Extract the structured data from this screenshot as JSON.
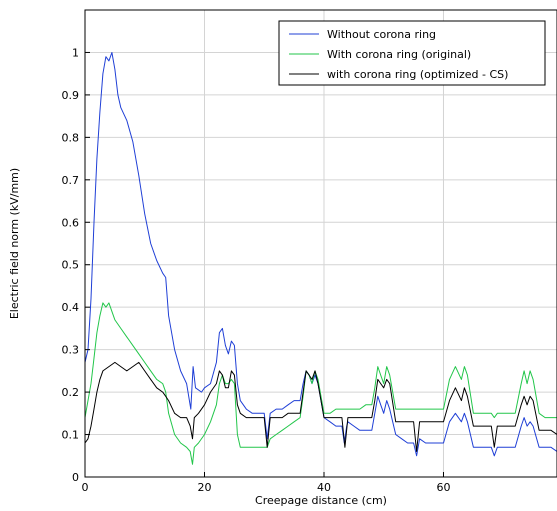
{
  "chart_data": {
    "type": "line",
    "title": "",
    "xlabel": "Creepage distance (cm)",
    "ylabel": "Electric field norm (kV/mm)",
    "xlim": [
      0,
      79
    ],
    "ylim": [
      0,
      1.1
    ],
    "xticks": [
      0,
      20,
      40,
      60
    ],
    "yticks": [
      0,
      0.1,
      0.2,
      0.3,
      0.4,
      0.5,
      0.6,
      0.7,
      0.8,
      0.9,
      1
    ],
    "grid": true,
    "legend_position": "top-right",
    "series": [
      {
        "name": "Without corona ring",
        "color": "#1f3fd6",
        "points": [
          [
            0,
            0.27
          ],
          [
            0.5,
            0.3
          ],
          [
            1,
            0.42
          ],
          [
            1.5,
            0.6
          ],
          [
            2,
            0.75
          ],
          [
            2.5,
            0.86
          ],
          [
            3,
            0.95
          ],
          [
            3.5,
            0.99
          ],
          [
            4,
            0.98
          ],
          [
            4.5,
            1.0
          ],
          [
            5,
            0.96
          ],
          [
            5.5,
            0.9
          ],
          [
            6,
            0.87
          ],
          [
            7,
            0.84
          ],
          [
            8,
            0.79
          ],
          [
            9,
            0.71
          ],
          [
            10,
            0.62
          ],
          [
            11,
            0.55
          ],
          [
            12,
            0.51
          ],
          [
            13,
            0.48
          ],
          [
            13.5,
            0.47
          ],
          [
            14,
            0.38
          ],
          [
            15,
            0.3
          ],
          [
            16,
            0.25
          ],
          [
            17,
            0.22
          ],
          [
            17.7,
            0.16
          ],
          [
            18.1,
            0.26
          ],
          [
            18.5,
            0.21
          ],
          [
            19.5,
            0.2
          ],
          [
            20,
            0.21
          ],
          [
            21,
            0.22
          ],
          [
            22,
            0.27
          ],
          [
            22.5,
            0.34
          ],
          [
            23,
            0.35
          ],
          [
            23.5,
            0.31
          ],
          [
            24,
            0.29
          ],
          [
            24.5,
            0.32
          ],
          [
            25,
            0.31
          ],
          [
            25.5,
            0.22
          ],
          [
            26,
            0.18
          ],
          [
            27,
            0.16
          ],
          [
            28,
            0.15
          ],
          [
            29,
            0.15
          ],
          [
            30,
            0.15
          ],
          [
            30.5,
            0.09
          ],
          [
            31,
            0.15
          ],
          [
            32,
            0.16
          ],
          [
            33,
            0.16
          ],
          [
            34,
            0.17
          ],
          [
            35,
            0.18
          ],
          [
            36,
            0.18
          ],
          [
            36.5,
            0.22
          ],
          [
            37,
            0.25
          ],
          [
            37.5,
            0.24
          ],
          [
            38,
            0.22
          ],
          [
            38.5,
            0.24
          ],
          [
            39,
            0.22
          ],
          [
            40,
            0.14
          ],
          [
            41,
            0.13
          ],
          [
            42,
            0.12
          ],
          [
            43,
            0.12
          ],
          [
            43.4,
            0.08
          ],
          [
            43.8,
            0.12
          ],
          [
            44,
            0.13
          ],
          [
            45,
            0.12
          ],
          [
            46,
            0.11
          ],
          [
            47,
            0.11
          ],
          [
            48,
            0.11
          ],
          [
            48.5,
            0.15
          ],
          [
            49,
            0.19
          ],
          [
            49.5,
            0.17
          ],
          [
            50,
            0.15
          ],
          [
            50.5,
            0.18
          ],
          [
            51,
            0.16
          ],
          [
            52,
            0.1
          ],
          [
            53,
            0.09
          ],
          [
            54,
            0.08
          ],
          [
            55,
            0.08
          ],
          [
            55.5,
            0.05
          ],
          [
            56,
            0.09
          ],
          [
            57,
            0.08
          ],
          [
            58,
            0.08
          ],
          [
            59,
            0.08
          ],
          [
            60,
            0.08
          ],
          [
            61,
            0.13
          ],
          [
            62,
            0.15
          ],
          [
            63,
            0.13
          ],
          [
            63.5,
            0.15
          ],
          [
            64,
            0.13
          ],
          [
            65,
            0.07
          ],
          [
            66,
            0.07
          ],
          [
            67,
            0.07
          ],
          [
            68,
            0.07
          ],
          [
            68.5,
            0.05
          ],
          [
            69,
            0.07
          ],
          [
            70,
            0.07
          ],
          [
            71,
            0.07
          ],
          [
            72,
            0.07
          ],
          [
            73,
            0.12
          ],
          [
            73.5,
            0.14
          ],
          [
            74,
            0.12
          ],
          [
            74.5,
            0.13
          ],
          [
            75,
            0.12
          ],
          [
            76,
            0.07
          ],
          [
            77,
            0.07
          ],
          [
            78,
            0.07
          ],
          [
            79,
            0.06
          ]
        ]
      },
      {
        "name": "With corona ring (original)",
        "color": "#22c64a",
        "points": [
          [
            0,
            0.14
          ],
          [
            0.5,
            0.18
          ],
          [
            1,
            0.22
          ],
          [
            1.5,
            0.28
          ],
          [
            2,
            0.34
          ],
          [
            2.5,
            0.38
          ],
          [
            3,
            0.41
          ],
          [
            3.5,
            0.4
          ],
          [
            4,
            0.41
          ],
          [
            4.5,
            0.39
          ],
          [
            5,
            0.37
          ],
          [
            6,
            0.35
          ],
          [
            7,
            0.33
          ],
          [
            8,
            0.31
          ],
          [
            9,
            0.29
          ],
          [
            10,
            0.27
          ],
          [
            11,
            0.25
          ],
          [
            12,
            0.23
          ],
          [
            13,
            0.22
          ],
          [
            13.5,
            0.2
          ],
          [
            14,
            0.15
          ],
          [
            15,
            0.1
          ],
          [
            16,
            0.08
          ],
          [
            17,
            0.07
          ],
          [
            17.6,
            0.06
          ],
          [
            18,
            0.03
          ],
          [
            18.3,
            0.07
          ],
          [
            19,
            0.08
          ],
          [
            20,
            0.1
          ],
          [
            21,
            0.13
          ],
          [
            22,
            0.17
          ],
          [
            22.5,
            0.22
          ],
          [
            23,
            0.24
          ],
          [
            23.5,
            0.22
          ],
          [
            24,
            0.22
          ],
          [
            24.5,
            0.23
          ],
          [
            25,
            0.22
          ],
          [
            25.5,
            0.1
          ],
          [
            26,
            0.07
          ],
          [
            27,
            0.07
          ],
          [
            28,
            0.07
          ],
          [
            29,
            0.07
          ],
          [
            30,
            0.07
          ],
          [
            30.5,
            0.07
          ],
          [
            31,
            0.09
          ],
          [
            32,
            0.1
          ],
          [
            33,
            0.11
          ],
          [
            34,
            0.12
          ],
          [
            35,
            0.13
          ],
          [
            36,
            0.14
          ],
          [
            36.5,
            0.19
          ],
          [
            37,
            0.25
          ],
          [
            37.5,
            0.24
          ],
          [
            38,
            0.22
          ],
          [
            38.5,
            0.25
          ],
          [
            39,
            0.23
          ],
          [
            40,
            0.15
          ],
          [
            41,
            0.15
          ],
          [
            42,
            0.16
          ],
          [
            43,
            0.16
          ],
          [
            43.5,
            0.16
          ],
          [
            44,
            0.16
          ],
          [
            45,
            0.16
          ],
          [
            46,
            0.16
          ],
          [
            47,
            0.17
          ],
          [
            48,
            0.17
          ],
          [
            48.5,
            0.21
          ],
          [
            49,
            0.26
          ],
          [
            49.5,
            0.24
          ],
          [
            50,
            0.22
          ],
          [
            50.5,
            0.26
          ],
          [
            51,
            0.24
          ],
          [
            52,
            0.16
          ],
          [
            53,
            0.16
          ],
          [
            54,
            0.16
          ],
          [
            55,
            0.16
          ],
          [
            56,
            0.16
          ],
          [
            57,
            0.16
          ],
          [
            58,
            0.16
          ],
          [
            59,
            0.16
          ],
          [
            60,
            0.16
          ],
          [
            61,
            0.23
          ],
          [
            62,
            0.26
          ],
          [
            63,
            0.23
          ],
          [
            63.5,
            0.26
          ],
          [
            64,
            0.24
          ],
          [
            65,
            0.15
          ],
          [
            66,
            0.15
          ],
          [
            67,
            0.15
          ],
          [
            68,
            0.15
          ],
          [
            68.5,
            0.14
          ],
          [
            69,
            0.15
          ],
          [
            70,
            0.15
          ],
          [
            71,
            0.15
          ],
          [
            72,
            0.15
          ],
          [
            73,
            0.22
          ],
          [
            73.5,
            0.25
          ],
          [
            74,
            0.22
          ],
          [
            74.5,
            0.25
          ],
          [
            75,
            0.23
          ],
          [
            76,
            0.15
          ],
          [
            77,
            0.14
          ],
          [
            78,
            0.14
          ],
          [
            79,
            0.14
          ]
        ]
      },
      {
        "name": "with corona ring (optimized - CS)",
        "color": "#000000",
        "points": [
          [
            0,
            0.08
          ],
          [
            0.5,
            0.09
          ],
          [
            1,
            0.12
          ],
          [
            1.5,
            0.16
          ],
          [
            2,
            0.2
          ],
          [
            2.5,
            0.23
          ],
          [
            3,
            0.25
          ],
          [
            4,
            0.26
          ],
          [
            5,
            0.27
          ],
          [
            6,
            0.26
          ],
          [
            7,
            0.25
          ],
          [
            8,
            0.26
          ],
          [
            9,
            0.27
          ],
          [
            10,
            0.25
          ],
          [
            11,
            0.23
          ],
          [
            12,
            0.21
          ],
          [
            13,
            0.2
          ],
          [
            13.5,
            0.19
          ],
          [
            14,
            0.18
          ],
          [
            15,
            0.15
          ],
          [
            16,
            0.14
          ],
          [
            17,
            0.14
          ],
          [
            17.6,
            0.12
          ],
          [
            18,
            0.09
          ],
          [
            18.3,
            0.14
          ],
          [
            19,
            0.15
          ],
          [
            20,
            0.17
          ],
          [
            21,
            0.2
          ],
          [
            22,
            0.22
          ],
          [
            22.5,
            0.25
          ],
          [
            23,
            0.24
          ],
          [
            23.5,
            0.21
          ],
          [
            24,
            0.21
          ],
          [
            24.5,
            0.25
          ],
          [
            25,
            0.24
          ],
          [
            25.5,
            0.17
          ],
          [
            26,
            0.15
          ],
          [
            27,
            0.14
          ],
          [
            28,
            0.14
          ],
          [
            29,
            0.14
          ],
          [
            30,
            0.14
          ],
          [
            30.5,
            0.07
          ],
          [
            31,
            0.14
          ],
          [
            32,
            0.14
          ],
          [
            33,
            0.14
          ],
          [
            34,
            0.15
          ],
          [
            35,
            0.15
          ],
          [
            36,
            0.15
          ],
          [
            36.5,
            0.2
          ],
          [
            37,
            0.25
          ],
          [
            37.5,
            0.24
          ],
          [
            38,
            0.23
          ],
          [
            38.5,
            0.25
          ],
          [
            39,
            0.22
          ],
          [
            40,
            0.14
          ],
          [
            41,
            0.14
          ],
          [
            42,
            0.14
          ],
          [
            43,
            0.14
          ],
          [
            43.5,
            0.07
          ],
          [
            44,
            0.14
          ],
          [
            45,
            0.14
          ],
          [
            46,
            0.14
          ],
          [
            47,
            0.14
          ],
          [
            48,
            0.14
          ],
          [
            48.5,
            0.18
          ],
          [
            49,
            0.23
          ],
          [
            49.5,
            0.22
          ],
          [
            50,
            0.21
          ],
          [
            50.5,
            0.23
          ],
          [
            51,
            0.22
          ],
          [
            52,
            0.13
          ],
          [
            53,
            0.13
          ],
          [
            54,
            0.13
          ],
          [
            55,
            0.13
          ],
          [
            55.5,
            0.06
          ],
          [
            56,
            0.13
          ],
          [
            57,
            0.13
          ],
          [
            58,
            0.13
          ],
          [
            59,
            0.13
          ],
          [
            60,
            0.13
          ],
          [
            61,
            0.18
          ],
          [
            62,
            0.21
          ],
          [
            63,
            0.18
          ],
          [
            63.5,
            0.21
          ],
          [
            64,
            0.19
          ],
          [
            65,
            0.12
          ],
          [
            66,
            0.12
          ],
          [
            67,
            0.12
          ],
          [
            68,
            0.12
          ],
          [
            68.5,
            0.07
          ],
          [
            69,
            0.12
          ],
          [
            70,
            0.12
          ],
          [
            71,
            0.12
          ],
          [
            72,
            0.12
          ],
          [
            73,
            0.17
          ],
          [
            73.5,
            0.19
          ],
          [
            74,
            0.17
          ],
          [
            74.5,
            0.19
          ],
          [
            75,
            0.18
          ],
          [
            76,
            0.11
          ],
          [
            77,
            0.11
          ],
          [
            78,
            0.11
          ],
          [
            79,
            0.1
          ]
        ]
      }
    ]
  }
}
